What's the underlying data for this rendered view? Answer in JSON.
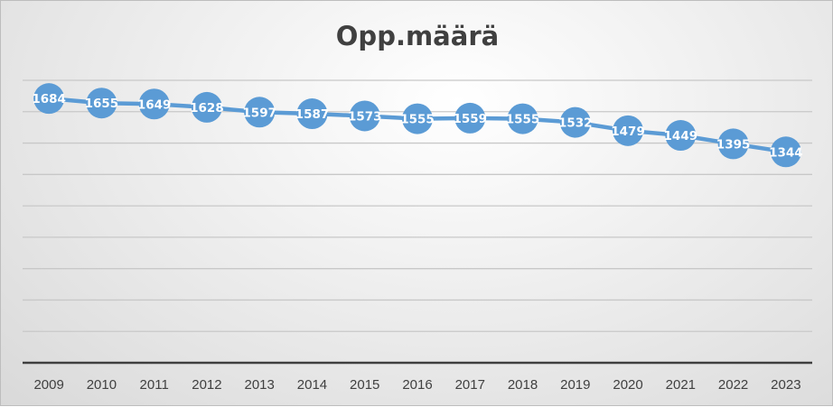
{
  "chart_data": {
    "type": "line",
    "title": "Opp.määrä",
    "xlabel": "",
    "ylabel": "",
    "categories": [
      "2009",
      "2010",
      "2011",
      "2012",
      "2013",
      "2014",
      "2015",
      "2016",
      "2017",
      "2018",
      "2019",
      "2020",
      "2021",
      "2022",
      "2023"
    ],
    "series": [
      {
        "values": [
          1684,
          1655,
          1649,
          1628,
          1597,
          1587,
          1573,
          1555,
          1559,
          1555,
          1532,
          1479,
          1449,
          1395,
          1344
        ],
        "color": "#5b9bd5"
      }
    ],
    "ylim": [
      0,
      1800
    ],
    "grid": true,
    "legend": "none",
    "data_labels": true
  }
}
